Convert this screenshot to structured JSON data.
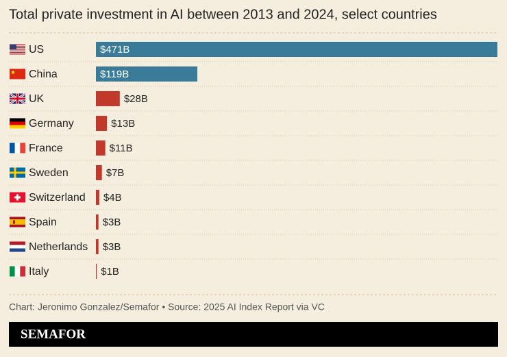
{
  "chart_data": {
    "type": "bar",
    "orientation": "horizontal",
    "title": "Total private investment in AI between 2013 and 2024, select countries",
    "categories": [
      "US",
      "China",
      "UK",
      "Germany",
      "France",
      "Sweden",
      "Switzerland",
      "Spain",
      "Netherlands",
      "Italy"
    ],
    "values": [
      471,
      119,
      28,
      13,
      11,
      7,
      4,
      3,
      3,
      1
    ],
    "value_labels": [
      "$471B",
      "$119B",
      "$28B",
      "$13B",
      "$11B",
      "$7B",
      "$4B",
      "$3B",
      "$3B",
      "$1B"
    ],
    "colors": [
      "#3a7b9a",
      "#3a7b9a",
      "#c0392b",
      "#c0392b",
      "#c0392b",
      "#c0392b",
      "#c0392b",
      "#c0392b",
      "#c0392b",
      "#c0392b"
    ],
    "source": "Chart: Jeronimo Gonzalez/Semafor • Source: 2025 AI Index Report via VC",
    "logo": "SEMAFOR"
  }
}
